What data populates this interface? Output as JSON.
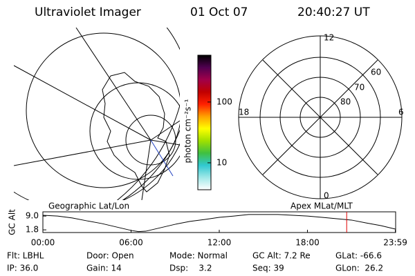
{
  "header": {
    "instrument": "Ultraviolet Imager",
    "date": "01 Oct 07",
    "time": "20:40:27 UT"
  },
  "colorbar": {
    "label": "photon cm⁻²s⁻¹",
    "lim": [
      3.6,
      590
    ],
    "log": true,
    "ticks": [
      10,
      100
    ],
    "colors": [
      "#ffffff",
      "#a0e8e8",
      "#30c8d0",
      "#40c040",
      "#a0e000",
      "#ffff00",
      "#ffa000",
      "#ff2000",
      "#c00000",
      "#a0004a",
      "#500050",
      "#000000"
    ]
  },
  "polar": {
    "labels": [
      "12",
      "18",
      "6",
      "0",
      "60",
      "70",
      "80"
    ]
  },
  "chart_data": {
    "type": "line",
    "left_label": "Geographic Lat/Lon",
    "right_label": "Apex MLat/MLT",
    "ylabel": "GC Alt",
    "xlim": [
      0,
      24
    ],
    "ylim": [
      0.4,
      11.2
    ],
    "xticks": [
      {
        "value": 0,
        "label": "00:00"
      },
      {
        "value": 6,
        "label": "06:00"
      },
      {
        "value": 12,
        "label": "12:00"
      },
      {
        "value": 18,
        "label": "18:00"
      },
      {
        "value": 23.98,
        "label": "23:59"
      }
    ],
    "yticks": [
      {
        "value": 9,
        "label": "9.0"
      },
      {
        "value": 1.8,
        "label": "1.8"
      }
    ],
    "x": [
      0,
      1,
      2,
      3,
      4,
      5,
      6,
      6.5,
      7,
      8,
      9,
      10,
      11,
      12,
      13,
      14,
      15,
      16,
      17,
      18,
      19,
      20,
      21,
      22,
      23,
      23.98
    ],
    "series": [
      {
        "color": "#000000",
        "values": [
          9.4,
          9.0,
          8.0,
          6.5,
          5.1,
          3.3,
          1.5,
          0.9,
          1.1,
          2.9,
          4.7,
          6.2,
          7.2,
          8.3,
          9.0,
          9.8,
          9.8,
          9.8,
          9.4,
          9.0,
          8.3,
          7.6,
          6.9,
          5.4,
          4.0,
          2.2
        ]
      }
    ],
    "marker_x": 20.67,
    "marker_color": "#e00000"
  },
  "footer": {
    "rows": [
      [
        "Flt: LBHL",
        "Door: Open",
        "Mode: Normal",
        "GC Alt: 7.2 Re",
        "GLat: -66.6"
      ],
      [
        "IP: 36.0",
        "Gain: 14",
        "Dsp:    3.2",
        "Seq: 39",
        "GLon:  26.2"
      ]
    ]
  }
}
